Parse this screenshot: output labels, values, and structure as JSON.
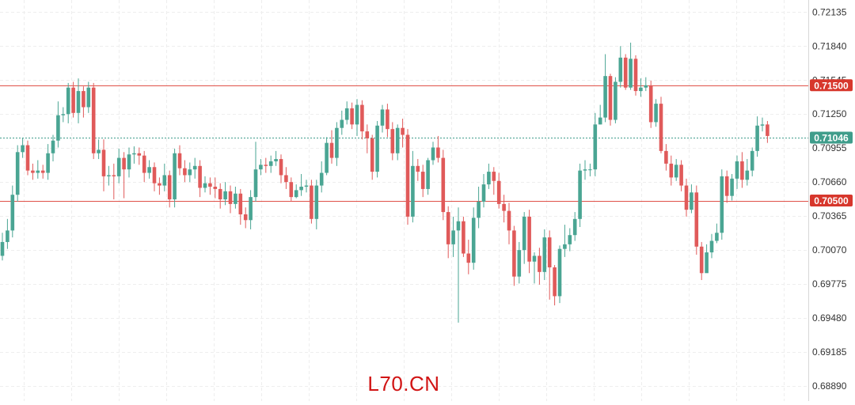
{
  "watermark": "L70.CN",
  "colors": {
    "up": "#4aa593",
    "down": "#e05a5a",
    "level_line": "#e0524a",
    "level_tag": "#d7372c",
    "price_tag": "#3f9d8b",
    "grid": "#eeeeee",
    "axis_text": "#333333"
  },
  "chart_data": {
    "type": "candlestick",
    "y_axis": {
      "position": "right",
      "ylim": [
        0.6876,
        0.7224
      ],
      "ticks": [
        "0.72135",
        "0.71840",
        "0.71545",
        "0.71250",
        "0.70955",
        "0.70660",
        "0.70365",
        "0.70070",
        "0.69775",
        "0.69480",
        "0.69185",
        "0.68890"
      ]
    },
    "horizontal_levels": [
      {
        "value": 0.715,
        "label": "0.71500",
        "style": "solid"
      },
      {
        "value": 0.705,
        "label": "0.70500",
        "style": "solid"
      }
    ],
    "current_price": {
      "value": 0.71046,
      "label": "0.71046",
      "style": "dotted"
    },
    "grid": true,
    "candles": [
      [
        0.7002,
        0.7014,
        0.7022,
        0.6998
      ],
      [
        0.7014,
        0.7024,
        0.7034,
        0.7008
      ],
      [
        0.7024,
        0.7055,
        0.7063,
        0.7018
      ],
      [
        0.7055,
        0.7092,
        0.7098,
        0.7049
      ],
      [
        0.7092,
        0.7098,
        0.7104,
        0.7087
      ],
      [
        0.7098,
        0.7076,
        0.7102,
        0.7072
      ],
      [
        0.7076,
        0.7074,
        0.7082,
        0.7068
      ],
      [
        0.7074,
        0.7076,
        0.7085,
        0.7069
      ],
      [
        0.7076,
        0.7074,
        0.7081,
        0.7069
      ],
      [
        0.7074,
        0.7091,
        0.7099,
        0.7068
      ],
      [
        0.7091,
        0.7102,
        0.7107,
        0.7084
      ],
      [
        0.7102,
        0.7124,
        0.7136,
        0.7096
      ],
      [
        0.7124,
        0.7125,
        0.7131,
        0.7118
      ],
      [
        0.7125,
        0.7148,
        0.7152,
        0.7117
      ],
      [
        0.7148,
        0.7126,
        0.7153,
        0.7122
      ],
      [
        0.7126,
        0.7145,
        0.7156,
        0.7117
      ],
      [
        0.7145,
        0.7131,
        0.7149,
        0.7122
      ],
      [
        0.7131,
        0.7148,
        0.7153,
        0.7126
      ],
      [
        0.7148,
        0.7091,
        0.7152,
        0.7086
      ],
      [
        0.7091,
        0.7094,
        0.7103,
        0.7086
      ],
      [
        0.7094,
        0.7071,
        0.7103,
        0.7058
      ],
      [
        0.7071,
        0.7072,
        0.708,
        0.7063
      ],
      [
        0.7072,
        0.7071,
        0.7082,
        0.7051
      ],
      [
        0.7071,
        0.7087,
        0.7095,
        0.7065
      ],
      [
        0.7087,
        0.7077,
        0.7092,
        0.7052
      ],
      [
        0.7077,
        0.709,
        0.7096,
        0.707
      ],
      [
        0.709,
        0.7091,
        0.7097,
        0.7082
      ],
      [
        0.7091,
        0.7089,
        0.7096,
        0.7081
      ],
      [
        0.7089,
        0.7074,
        0.7093,
        0.7066
      ],
      [
        0.7074,
        0.7079,
        0.7085,
        0.7069
      ],
      [
        0.7079,
        0.7065,
        0.7083,
        0.7058
      ],
      [
        0.7065,
        0.7063,
        0.707,
        0.7055
      ],
      [
        0.7063,
        0.7072,
        0.7082,
        0.7058
      ],
      [
        0.7072,
        0.7051,
        0.7076,
        0.7044
      ],
      [
        0.7051,
        0.7091,
        0.7095,
        0.7044
      ],
      [
        0.7091,
        0.7078,
        0.7098,
        0.7072
      ],
      [
        0.7078,
        0.7072,
        0.7085,
        0.7066
      ],
      [
        0.7072,
        0.7077,
        0.7083,
        0.7066
      ],
      [
        0.7077,
        0.708,
        0.7087,
        0.7069
      ],
      [
        0.708,
        0.7061,
        0.7085,
        0.7053
      ],
      [
        0.7061,
        0.7065,
        0.7071,
        0.7057
      ],
      [
        0.7065,
        0.7062,
        0.707,
        0.7055
      ],
      [
        0.7062,
        0.706,
        0.707,
        0.7052
      ],
      [
        0.706,
        0.7051,
        0.7065,
        0.7043
      ],
      [
        0.7051,
        0.7058,
        0.7066,
        0.7046
      ],
      [
        0.7058,
        0.7047,
        0.7063,
        0.7039
      ],
      [
        0.7047,
        0.7056,
        0.7062,
        0.7043
      ],
      [
        0.7056,
        0.7038,
        0.706,
        0.7029
      ],
      [
        0.7038,
        0.7033,
        0.7044,
        0.7026
      ],
      [
        0.7033,
        0.7053,
        0.7059,
        0.7025
      ],
      [
        0.7053,
        0.7077,
        0.7101,
        0.7049
      ],
      [
        0.7077,
        0.7081,
        0.7086,
        0.7072
      ],
      [
        0.7081,
        0.708,
        0.7087,
        0.7074
      ],
      [
        0.708,
        0.7084,
        0.7089,
        0.7074
      ],
      [
        0.7084,
        0.7086,
        0.7093,
        0.708
      ],
      [
        0.7086,
        0.7072,
        0.709,
        0.7065
      ],
      [
        0.7072,
        0.7066,
        0.7079,
        0.706
      ],
      [
        0.7066,
        0.7053,
        0.707,
        0.7049
      ],
      [
        0.7053,
        0.7059,
        0.7064,
        0.7052
      ],
      [
        0.7059,
        0.7062,
        0.7073,
        0.7054
      ],
      [
        0.7062,
        0.7063,
        0.7068,
        0.7057
      ],
      [
        0.7063,
        0.7034,
        0.7068,
        0.703
      ],
      [
        0.7034,
        0.7063,
        0.7068,
        0.7025
      ],
      [
        0.7063,
        0.7074,
        0.7084,
        0.7057
      ],
      [
        0.7074,
        0.71,
        0.7105,
        0.7072
      ],
      [
        0.71,
        0.7087,
        0.7111,
        0.7082
      ],
      [
        0.7087,
        0.7113,
        0.7118,
        0.708
      ],
      [
        0.7113,
        0.712,
        0.7128,
        0.7107
      ],
      [
        0.712,
        0.713,
        0.7136,
        0.7116
      ],
      [
        0.713,
        0.7116,
        0.7135,
        0.7112
      ],
      [
        0.7116,
        0.7133,
        0.7138,
        0.7106
      ],
      [
        0.7133,
        0.711,
        0.7137,
        0.7103
      ],
      [
        0.711,
        0.7104,
        0.7116,
        0.7091
      ],
      [
        0.7104,
        0.7075,
        0.7107,
        0.7068
      ],
      [
        0.7075,
        0.7115,
        0.7119,
        0.707
      ],
      [
        0.7115,
        0.7129,
        0.7133,
        0.7109
      ],
      [
        0.7129,
        0.7112,
        0.7134,
        0.7105
      ],
      [
        0.7112,
        0.7091,
        0.7118,
        0.7085
      ],
      [
        0.7091,
        0.7113,
        0.7116,
        0.7085
      ],
      [
        0.7113,
        0.7107,
        0.7121,
        0.7096
      ],
      [
        0.7107,
        0.7036,
        0.7112,
        0.7029
      ],
      [
        0.7036,
        0.708,
        0.7093,
        0.7031
      ],
      [
        0.708,
        0.7075,
        0.7086,
        0.7067
      ],
      [
        0.7075,
        0.706,
        0.7081,
        0.7053
      ],
      [
        0.706,
        0.7085,
        0.7087,
        0.7055
      ],
      [
        0.7085,
        0.7096,
        0.7101,
        0.7081
      ],
      [
        0.7096,
        0.7087,
        0.7106,
        0.7083
      ],
      [
        0.7087,
        0.704,
        0.7094,
        0.7033
      ],
      [
        0.704,
        0.7012,
        0.7045,
        0.7
      ],
      [
        0.7012,
        0.7024,
        0.7036,
        0.7001
      ],
      [
        0.7024,
        0.7032,
        0.7044,
        0.6944
      ],
      [
        0.7032,
        0.7004,
        0.7036,
        0.7001
      ],
      [
        0.7004,
        0.6996,
        0.7016,
        0.6986
      ],
      [
        0.6996,
        0.7035,
        0.7044,
        0.699
      ],
      [
        0.7035,
        0.7049,
        0.7062,
        0.7026
      ],
      [
        0.7049,
        0.7064,
        0.7073,
        0.7044
      ],
      [
        0.7064,
        0.7075,
        0.7082,
        0.706
      ],
      [
        0.7075,
        0.7067,
        0.7079,
        0.7055
      ],
      [
        0.7067,
        0.7047,
        0.7074,
        0.7043
      ],
      [
        0.7047,
        0.7041,
        0.7055,
        0.7031
      ],
      [
        0.7041,
        0.7024,
        0.7048,
        0.7012
      ],
      [
        0.7024,
        0.6984,
        0.7028,
        0.6976
      ],
      [
        0.6984,
        0.7007,
        0.7014,
        0.6978
      ],
      [
        0.7007,
        0.7036,
        0.704,
        0.6995
      ],
      [
        0.7036,
        0.6997,
        0.7042,
        0.6987
      ],
      [
        0.6997,
        0.7002,
        0.7005,
        0.6978
      ],
      [
        0.7002,
        0.6988,
        0.7009,
        0.6977
      ],
      [
        0.6988,
        0.7018,
        0.7025,
        0.6981
      ],
      [
        0.7018,
        0.6992,
        0.7024,
        0.6964
      ],
      [
        0.6992,
        0.6967,
        0.6994,
        0.6959
      ],
      [
        0.6967,
        0.7008,
        0.7011,
        0.6961
      ],
      [
        0.7008,
        0.7012,
        0.7029,
        0.7001
      ],
      [
        0.7012,
        0.702,
        0.7026,
        0.7006
      ],
      [
        0.702,
        0.7034,
        0.704,
        0.7015
      ],
      [
        0.7034,
        0.7076,
        0.7082,
        0.7027
      ],
      [
        0.7076,
        0.7077,
        0.7085,
        0.7068
      ],
      [
        0.7077,
        0.7077,
        0.7082,
        0.7071
      ],
      [
        0.7077,
        0.7116,
        0.7126,
        0.7071
      ],
      [
        0.7116,
        0.7122,
        0.7133,
        0.7116
      ],
      [
        0.7122,
        0.7158,
        0.7177,
        0.7118
      ],
      [
        0.7158,
        0.712,
        0.716,
        0.7115
      ],
      [
        0.712,
        0.7153,
        0.7157,
        0.7117
      ],
      [
        0.7153,
        0.7174,
        0.7184,
        0.7148
      ],
      [
        0.7174,
        0.7148,
        0.7177,
        0.7146
      ],
      [
        0.7148,
        0.7173,
        0.7187,
        0.7146
      ],
      [
        0.7173,
        0.7145,
        0.7176,
        0.7141
      ],
      [
        0.7145,
        0.7148,
        0.7156,
        0.714
      ],
      [
        0.7148,
        0.715,
        0.7157,
        0.7145
      ],
      [
        0.715,
        0.7118,
        0.7154,
        0.7113
      ],
      [
        0.7118,
        0.7134,
        0.7138,
        0.7114
      ],
      [
        0.7134,
        0.7093,
        0.714,
        0.7091
      ],
      [
        0.7093,
        0.7082,
        0.7099,
        0.7076
      ],
      [
        0.7082,
        0.707,
        0.7089,
        0.7063
      ],
      [
        0.707,
        0.7081,
        0.7086,
        0.7067
      ],
      [
        0.7081,
        0.7063,
        0.7085,
        0.7058
      ],
      [
        0.7063,
        0.7042,
        0.7069,
        0.7036
      ],
      [
        0.7042,
        0.7057,
        0.7064,
        0.7039
      ],
      [
        0.7057,
        0.701,
        0.7063,
        0.7003
      ],
      [
        0.701,
        0.6987,
        0.7014,
        0.6981
      ],
      [
        0.6987,
        0.7005,
        0.7012,
        0.6999
      ],
      [
        0.7005,
        0.7015,
        0.7021,
        0.7
      ],
      [
        0.7015,
        0.7022,
        0.703,
        0.7013
      ],
      [
        0.7022,
        0.7071,
        0.7077,
        0.7016
      ],
      [
        0.7071,
        0.7054,
        0.7076,
        0.7048
      ],
      [
        0.7054,
        0.7069,
        0.7073,
        0.705
      ],
      [
        0.7069,
        0.7084,
        0.7089,
        0.706
      ],
      [
        0.7084,
        0.7068,
        0.7092,
        0.7061
      ],
      [
        0.7068,
        0.7076,
        0.7086,
        0.7063
      ],
      [
        0.7076,
        0.7093,
        0.7096,
        0.7071
      ],
      [
        0.7093,
        0.7115,
        0.7123,
        0.7088
      ],
      [
        0.7115,
        0.7116,
        0.7122,
        0.711
      ],
      [
        0.7116,
        0.7106,
        0.7119,
        0.71
      ]
    ]
  }
}
